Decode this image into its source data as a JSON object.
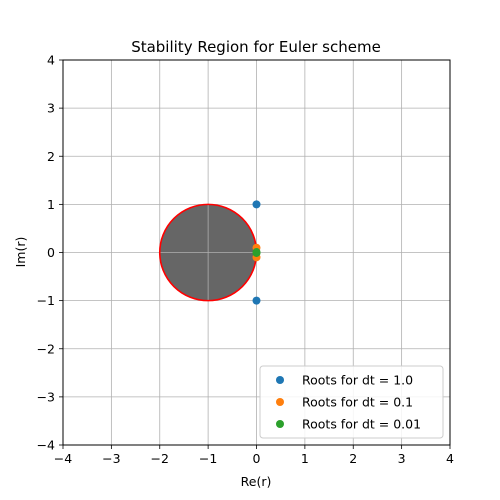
{
  "chart_data": {
    "type": "scatter",
    "title": "Stability Region for Euler scheme",
    "xlabel": "Re(r)",
    "ylabel": "Im(r)",
    "xlim": [
      -4,
      4
    ],
    "ylim": [
      -4,
      4
    ],
    "xticks": [
      -4,
      -3,
      -2,
      -1,
      0,
      1,
      2,
      3,
      4
    ],
    "yticks": [
      -4,
      -3,
      -2,
      -1,
      0,
      1,
      2,
      3,
      4
    ],
    "xtick_labels": [
      "−4",
      "−3",
      "−2",
      "−1",
      "0",
      "1",
      "2",
      "3",
      "4"
    ],
    "ytick_labels": [
      "−4",
      "−3",
      "−2",
      "−1",
      "0",
      "1",
      "2",
      "3",
      "4"
    ],
    "grid": true,
    "stability_region": {
      "center": [
        -1,
        0
      ],
      "radius": 1,
      "fill_color": "#666666",
      "edge_color": "#ff0000"
    },
    "series": [
      {
        "name": "Roots for dt = 1.0",
        "color": "#1f77b4",
        "points": [
          [
            0,
            1
          ],
          [
            0,
            -1
          ]
        ]
      },
      {
        "name": "Roots for dt = 0.1",
        "color": "#ff7f0e",
        "points": [
          [
            0,
            0.1
          ],
          [
            0,
            -0.1
          ]
        ]
      },
      {
        "name": "Roots for dt = 0.01",
        "color": "#2ca02c",
        "points": [
          [
            0,
            0.01
          ],
          [
            0,
            -0.01
          ]
        ]
      }
    ],
    "legend_position": "lower-right"
  }
}
